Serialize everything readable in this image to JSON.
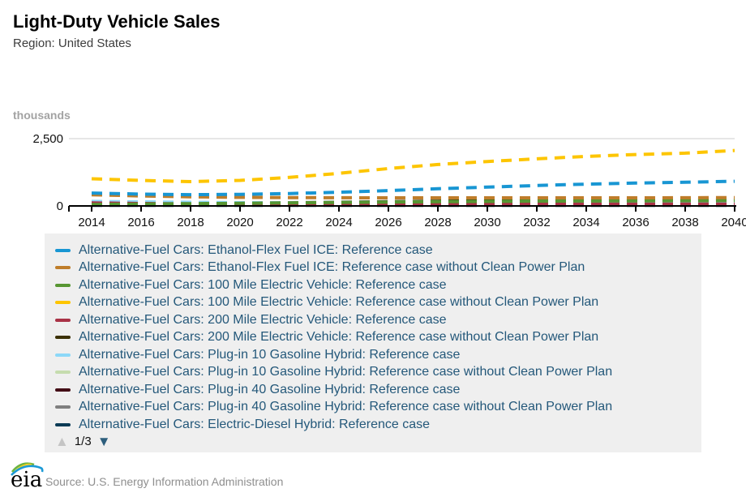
{
  "header": {
    "title": "Light-Duty Vehicle Sales",
    "subtitle": "Region: United States"
  },
  "chart": {
    "unit_label": "thousands",
    "accent_colors": {
      "gridline": "#cccccc",
      "axis": "#000000"
    }
  },
  "chart_data": {
    "type": "line",
    "title": "Light-Duty Vehicle Sales",
    "subtitle": "Region: United States",
    "ylabel": "thousands",
    "ylim": [
      0,
      2500
    ],
    "y_ticks": [
      {
        "value": 0,
        "label": "0"
      },
      {
        "value": 2500,
        "label": "2,500"
      }
    ],
    "grid": "single horizontal gridline at 2500",
    "line_style": "dashed",
    "legend_position": "below",
    "x": [
      2014,
      2016,
      2018,
      2020,
      2022,
      2024,
      2026,
      2028,
      2030,
      2032,
      2034,
      2036,
      2038,
      2040
    ],
    "series": [
      {
        "name": "Alternative-Fuel Cars: Ethanol-Flex Fuel ICE: Reference case",
        "color": "#1896d3",
        "values": [
          480,
          440,
          420,
          430,
          460,
          510,
          570,
          640,
          700,
          760,
          810,
          850,
          880,
          915
        ]
      },
      {
        "name": "Alternative-Fuel Cars: Ethanol-Flex Fuel ICE: Reference case without Clean Power Plan",
        "color": "#bf7d2a",
        "values": [
          415,
          370,
          340,
          320,
          310,
          305,
          300,
          300,
          300,
          300,
          300,
          300,
          305,
          310
        ]
      },
      {
        "name": "Alternative-Fuel Cars: 100 Mile Electric Vehicle: Reference case",
        "color": "#579632",
        "values": [
          55,
          70,
          85,
          100,
          115,
          130,
          145,
          160,
          170,
          180,
          185,
          190,
          195,
          200
        ]
      },
      {
        "name": "Alternative-Fuel Cars: 100 Mile Electric Vehicle: Reference case without Clean Power Plan",
        "color": "#fdc500",
        "values": [
          1010,
          950,
          905,
          950,
          1060,
          1210,
          1390,
          1540,
          1650,
          1750,
          1840,
          1910,
          1960,
          2060
        ]
      },
      {
        "name": "Alternative-Fuel Cars: 200 Mile Electric Vehicle: Reference case",
        "color": "#a93246",
        "values": [
          110,
          90,
          75,
          70,
          65,
          65,
          65,
          65,
          65,
          65,
          65,
          65,
          65,
          70
        ]
      },
      {
        "name": "Alternative-Fuel Cars: 200 Mile Electric Vehicle: Reference case without Clean Power Plan",
        "color": "#3b3004",
        "values": [
          35,
          45,
          60,
          80,
          105,
          130,
          155,
          175,
          190,
          200,
          210,
          215,
          220,
          230
        ]
      },
      {
        "name": "Alternative-Fuel Cars: Plug-in 10 Gasoline Hybrid: Reference case",
        "color": "#8cd8f8",
        "values": [
          170,
          150,
          135,
          120,
          115,
          110,
          110,
          110,
          110,
          110,
          110,
          110,
          115,
          120
        ]
      },
      {
        "name": "Alternative-Fuel Cars: Plug-in 10 Gasoline Hybrid: Reference case without Clean Power Plan",
        "color": "#c5dcae",
        "values": [
          90,
          80,
          75,
          70,
          70,
          70,
          70,
          70,
          70,
          70,
          70,
          70,
          70,
          75
        ]
      },
      {
        "name": "Alternative-Fuel Cars: Plug-in 40 Gasoline Hybrid: Reference case",
        "color": "#430d16",
        "values": [
          65,
          55,
          50,
          45,
          45,
          45,
          45,
          45,
          45,
          45,
          45,
          45,
          45,
          50
        ]
      },
      {
        "name": "Alternative-Fuel Cars: Plug-in 40 Gasoline Hybrid: Reference case without Clean Power Plan",
        "color": "#7f7f7f",
        "values": [
          120,
          110,
          100,
          105,
          120,
          140,
          160,
          175,
          185,
          195,
          200,
          205,
          210,
          215
        ]
      },
      {
        "name": "Alternative-Fuel Cars: Electric-Diesel Hybrid: Reference case",
        "color": "#0a3b55",
        "values": [
          25,
          22,
          20,
          20,
          20,
          20,
          20,
          20,
          20,
          20,
          20,
          20,
          20,
          22
        ]
      }
    ]
  },
  "legend": {
    "pagination": {
      "current": "1/3",
      "up_icon": "▲",
      "down_icon": "▼"
    }
  },
  "footer": {
    "logo_text": "eia",
    "source": "Source: U.S. Energy Information Administration"
  }
}
